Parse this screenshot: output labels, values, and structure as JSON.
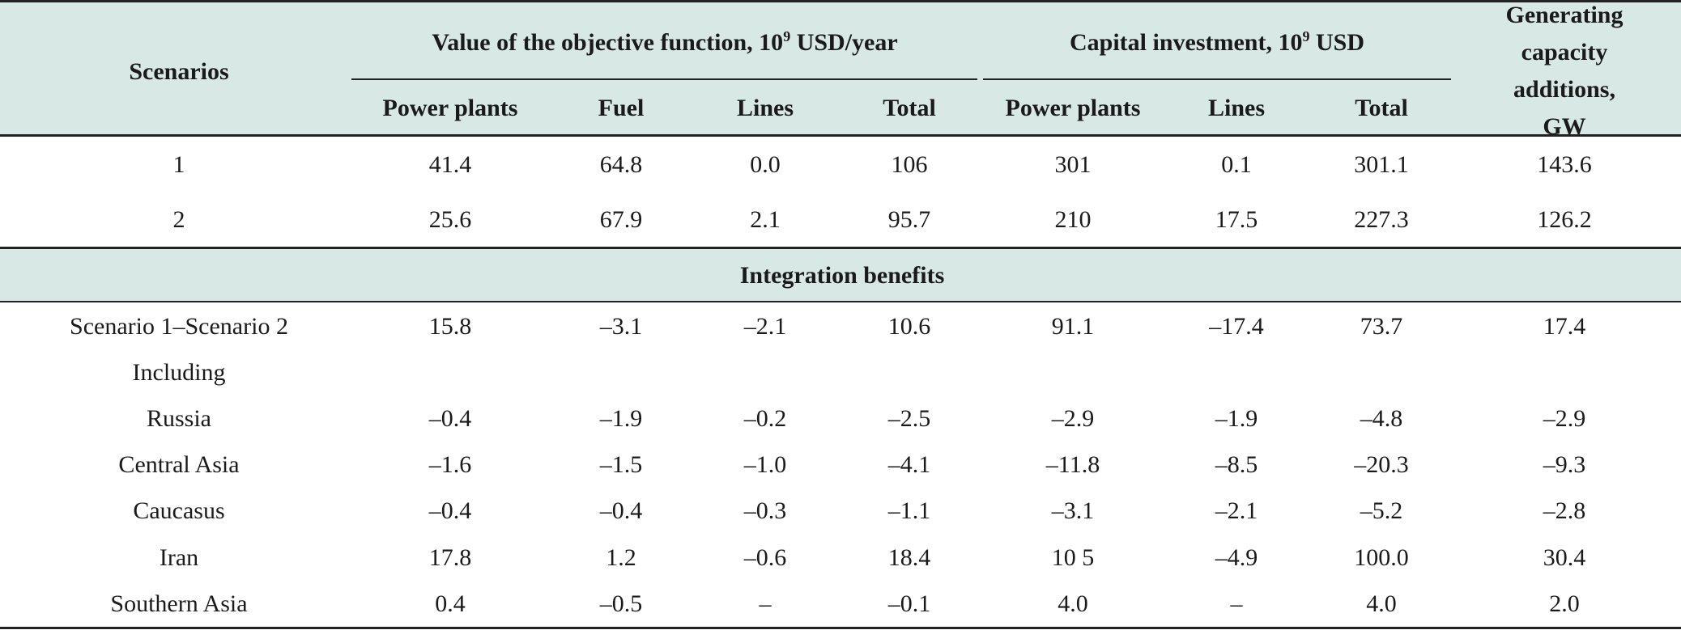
{
  "table": {
    "header": {
      "scenarios": "Scenarios",
      "objective_group": "Value of the objective function, 10",
      "objective_exp": "9",
      "objective_unit": " USD/year",
      "capital_group": "Capital investment, 10",
      "capital_exp": "9",
      "capital_unit": " USD",
      "capacity_line1": "Generating",
      "capacity_line2": "capacity",
      "capacity_line3": "additions, GW",
      "obj_cols": [
        "Power plants",
        "Fuel",
        "Lines",
        "Total"
      ],
      "cap_cols": [
        "Power plants",
        "Lines",
        "Total"
      ]
    },
    "scenario_rows": [
      {
        "label": "1",
        "values": [
          "41.4",
          "64.8",
          "0.0",
          "106",
          "301",
          "0.1",
          "301.1",
          "143.6"
        ]
      },
      {
        "label": "2",
        "values": [
          "25.6",
          "67.9",
          "2.1",
          "95.7",
          "210",
          "17.5",
          "227.3",
          "126.2"
        ]
      }
    ],
    "section_title": "Integration benefits",
    "benefit_rows": [
      {
        "label": "Scenario 1–Scenario 2",
        "values": [
          "15.8",
          "–3.1",
          "–2.1",
          "10.6",
          "91.1",
          "–17.4",
          "73.7",
          "17.4"
        ]
      },
      {
        "label": "Including",
        "values": [
          "",
          "",
          "",
          "",
          "",
          "",
          "",
          ""
        ]
      },
      {
        "label": "Russia",
        "values": [
          "–0.4",
          "–1.9",
          "–0.2",
          "–2.5",
          "–2.9",
          "–1.9",
          "–4.8",
          "–2.9"
        ]
      },
      {
        "label": "Central Asia",
        "values": [
          "–1.6",
          "–1.5",
          "–1.0",
          "–4.1",
          "–11.8",
          "–8.5",
          "–20.3",
          "–9.3"
        ]
      },
      {
        "label": "Caucasus",
        "values": [
          "–0.4",
          "–0.4",
          "–0.3",
          "–1.1",
          "–3.1",
          "–2.1",
          "–5.2",
          "–2.8"
        ]
      },
      {
        "label": "Iran",
        "values": [
          "17.8",
          "1.2",
          "–0.6",
          "18.4",
          "10 5",
          "–4.9",
          "100.0",
          "30.4"
        ]
      },
      {
        "label": "Southern Asia",
        "values": [
          "0.4",
          "–0.5",
          "–",
          "–0.1",
          "4.0",
          "–",
          "4.0",
          "2.0"
        ]
      }
    ],
    "colors": {
      "header_band": "#d8e8e4",
      "rule": "#222222",
      "text": "#1a1a1a"
    }
  }
}
